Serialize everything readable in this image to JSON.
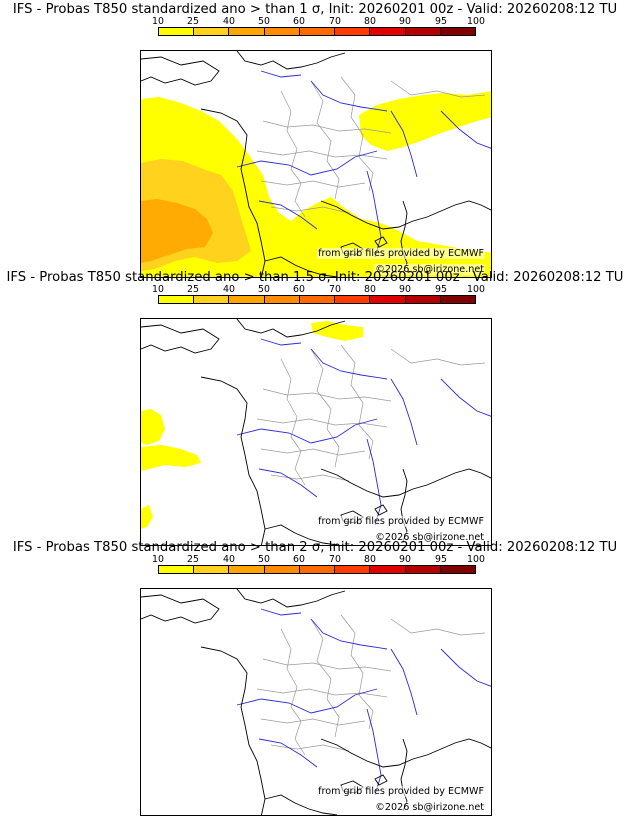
{
  "legend": {
    "ticks": [
      "10",
      "25",
      "40",
      "50",
      "60",
      "70",
      "80",
      "90",
      "95",
      "100"
    ],
    "colors": [
      "#ffff00",
      "#ffd21e",
      "#ffa500",
      "#ff8c00",
      "#ff6a00",
      "#ff3c00",
      "#e00000",
      "#b40000",
      "#800000"
    ]
  },
  "panels": [
    {
      "title": "IFS - Probas T850  standardized ano > than 1 σ, Init: 20260201 00z - Valid: 20260208:12 TU",
      "source_credit": "from grib files provided by ECMWF",
      "copyright": "©2026 sb@irizone.net",
      "threshold_sigma": 1
    },
    {
      "title": "IFS - Probas T850  standardized ano > than 1.5 σ, Init: 20260201 00z - Valid: 20260208:12 TU",
      "source_credit": "from grib files provided by ECMWF",
      "copyright": "©2026 sb@irizone.net",
      "threshold_sigma": 1.5
    },
    {
      "title": "IFS - Probas T850  standardized ano > than 2 σ, Init: 20260201 00z - Valid: 20260208:12 TU",
      "source_credit": "from grib files provided by ECMWF",
      "copyright": "©2026 sb@irizone.net",
      "threshold_sigma": 2
    }
  ],
  "colors": {
    "coast": "#000000",
    "rivers": "#2a2ad8",
    "borders": "#9a9a9a",
    "prob_low": "#ffff00",
    "prob_mid": "#ffd21e",
    "prob_high": "#ffa500"
  }
}
